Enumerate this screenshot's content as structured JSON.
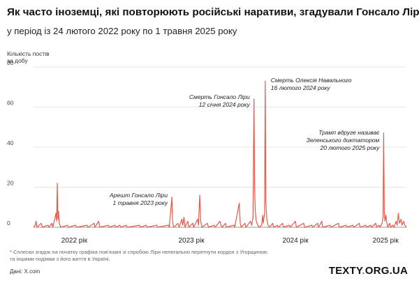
{
  "header": {
    "title": "Як часто іноземці, які повторюють російські наративи, згадували Гонсало Ліру",
    "subtitle": "у період із 24 лютого 2022 року по 1 травня 2025 року"
  },
  "footer": {
    "footnote_line1": "* Сплески згадок на початку графіка пов’язані зі спробою Ліри нелегально перетнути кордон з Угорщиною",
    "footnote_line2": "та іншими подіями з його життя в Україні.",
    "source": "Дані: X.com",
    "brand_left": "TEXTY",
    "brand_dot": ".",
    "brand_right": "ORG.UA"
  },
  "chart_data": {
    "type": "line",
    "ylabel_line1": "Кількість постів",
    "ylabel_line2": "за добу",
    "ylim": [
      0,
      80
    ],
    "yticks": [
      0,
      20,
      40,
      60,
      80
    ],
    "grid": "horizontal",
    "line_color": "#e5584a",
    "x_range": [
      "2022-02-24",
      "2025-05-01"
    ],
    "x_labels": [
      {
        "label": "2022 рік",
        "date": "2022-07-01"
      },
      {
        "label": "2023 рік",
        "date": "2023-07-01"
      },
      {
        "label": "2024 рік",
        "date": "2024-05-20"
      },
      {
        "label": "2025 рік",
        "date": "2025-02-25"
      }
    ],
    "points": [
      {
        "date": "2022-02-24",
        "value": 0
      },
      {
        "date": "2022-03-01",
        "value": 1
      },
      {
        "date": "2022-03-04",
        "value": 3
      },
      {
        "date": "2022-03-07",
        "value": 0
      },
      {
        "date": "2022-03-20",
        "value": 2
      },
      {
        "date": "2022-03-24",
        "value": 0
      },
      {
        "date": "2022-04-10",
        "value": 1
      },
      {
        "date": "2022-04-13",
        "value": 0
      },
      {
        "date": "2022-04-22",
        "value": 2
      },
      {
        "date": "2022-04-25",
        "value": 0
      },
      {
        "date": "2022-05-05",
        "value": 7
      },
      {
        "date": "2022-05-07",
        "value": 3
      },
      {
        "date": "2022-05-09",
        "value": 22
      },
      {
        "date": "2022-05-11",
        "value": 4
      },
      {
        "date": "2022-05-13",
        "value": 8
      },
      {
        "date": "2022-05-15",
        "value": 2
      },
      {
        "date": "2022-05-20",
        "value": 0
      },
      {
        "date": "2022-06-10",
        "value": 1
      },
      {
        "date": "2022-06-13",
        "value": 0
      },
      {
        "date": "2022-07-05",
        "value": 1
      },
      {
        "date": "2022-07-08",
        "value": 0
      },
      {
        "date": "2022-08-10",
        "value": 1
      },
      {
        "date": "2022-08-13",
        "value": 0
      },
      {
        "date": "2022-09-01",
        "value": 2
      },
      {
        "date": "2022-09-03",
        "value": 0
      },
      {
        "date": "2022-09-15",
        "value": 3
      },
      {
        "date": "2022-09-18",
        "value": 0
      },
      {
        "date": "2022-10-15",
        "value": 1
      },
      {
        "date": "2022-10-18",
        "value": 0
      },
      {
        "date": "2022-11-05",
        "value": 1
      },
      {
        "date": "2022-11-08",
        "value": 0
      },
      {
        "date": "2022-11-20",
        "value": 1
      },
      {
        "date": "2022-11-23",
        "value": 0
      },
      {
        "date": "2022-12-10",
        "value": 1
      },
      {
        "date": "2022-12-13",
        "value": 0
      },
      {
        "date": "2023-01-20",
        "value": 1
      },
      {
        "date": "2023-01-23",
        "value": 0
      },
      {
        "date": "2023-02-10",
        "value": 1
      },
      {
        "date": "2023-02-13",
        "value": 0
      },
      {
        "date": "2023-03-15",
        "value": 1
      },
      {
        "date": "2023-03-18",
        "value": 0
      },
      {
        "date": "2023-04-20",
        "value": 1
      },
      {
        "date": "2023-04-23",
        "value": 0
      },
      {
        "date": "2023-05-01",
        "value": 15
      },
      {
        "date": "2023-05-03",
        "value": 4
      },
      {
        "date": "2023-05-05",
        "value": 1
      },
      {
        "date": "2023-05-08",
        "value": 0
      },
      {
        "date": "2023-05-20",
        "value": 2
      },
      {
        "date": "2023-05-24",
        "value": 0
      },
      {
        "date": "2023-06-01",
        "value": 4
      },
      {
        "date": "2023-06-04",
        "value": 1
      },
      {
        "date": "2023-06-08",
        "value": 5
      },
      {
        "date": "2023-06-11",
        "value": 0
      },
      {
        "date": "2023-06-20",
        "value": 3
      },
      {
        "date": "2023-06-23",
        "value": 0
      },
      {
        "date": "2023-07-05",
        "value": 2
      },
      {
        "date": "2023-07-08",
        "value": 0
      },
      {
        "date": "2023-07-20",
        "value": 4
      },
      {
        "date": "2023-07-23",
        "value": 1
      },
      {
        "date": "2023-07-27",
        "value": 16
      },
      {
        "date": "2023-07-30",
        "value": 3
      },
      {
        "date": "2023-08-03",
        "value": 0
      },
      {
        "date": "2023-08-20",
        "value": 2
      },
      {
        "date": "2023-08-23",
        "value": 0
      },
      {
        "date": "2023-09-10",
        "value": 1
      },
      {
        "date": "2023-09-13",
        "value": 0
      },
      {
        "date": "2023-09-28",
        "value": 3
      },
      {
        "date": "2023-10-01",
        "value": 1
      },
      {
        "date": "2023-10-05",
        "value": 0
      },
      {
        "date": "2023-10-15",
        "value": 2
      },
      {
        "date": "2023-10-18",
        "value": 0
      },
      {
        "date": "2023-11-10",
        "value": 1
      },
      {
        "date": "2023-11-13",
        "value": 0
      },
      {
        "date": "2023-11-27",
        "value": 12
      },
      {
        "date": "2023-11-30",
        "value": 2
      },
      {
        "date": "2023-12-03",
        "value": 0
      },
      {
        "date": "2023-12-15",
        "value": 2
      },
      {
        "date": "2023-12-18",
        "value": 0
      },
      {
        "date": "2024-01-01",
        "value": 3
      },
      {
        "date": "2024-01-05",
        "value": 1
      },
      {
        "date": "2024-01-09",
        "value": 5
      },
      {
        "date": "2024-01-12",
        "value": 64
      },
      {
        "date": "2024-01-14",
        "value": 20
      },
      {
        "date": "2024-01-16",
        "value": 8
      },
      {
        "date": "2024-01-19",
        "value": 3
      },
      {
        "date": "2024-01-24",
        "value": 1
      },
      {
        "date": "2024-01-28",
        "value": 0
      },
      {
        "date": "2024-02-05",
        "value": 1
      },
      {
        "date": "2024-02-08",
        "value": 6
      },
      {
        "date": "2024-02-10",
        "value": 2
      },
      {
        "date": "2024-02-14",
        "value": 7
      },
      {
        "date": "2024-02-16",
        "value": 73
      },
      {
        "date": "2024-02-18",
        "value": 12
      },
      {
        "date": "2024-02-21",
        "value": 4
      },
      {
        "date": "2024-02-25",
        "value": 1
      },
      {
        "date": "2024-03-01",
        "value": 0
      },
      {
        "date": "2024-03-10",
        "value": 2
      },
      {
        "date": "2024-03-13",
        "value": 0
      },
      {
        "date": "2024-03-25",
        "value": 1
      },
      {
        "date": "2024-03-28",
        "value": 0
      },
      {
        "date": "2024-04-10",
        "value": 2
      },
      {
        "date": "2024-04-13",
        "value": 0
      },
      {
        "date": "2024-05-01",
        "value": 1
      },
      {
        "date": "2024-05-04",
        "value": 0
      },
      {
        "date": "2024-05-20",
        "value": 3
      },
      {
        "date": "2024-05-23",
        "value": 0
      },
      {
        "date": "2024-06-15",
        "value": 2
      },
      {
        "date": "2024-06-18",
        "value": 0
      },
      {
        "date": "2024-07-10",
        "value": 1
      },
      {
        "date": "2024-07-13",
        "value": 0
      },
      {
        "date": "2024-07-28",
        "value": 2
      },
      {
        "date": "2024-07-31",
        "value": 0
      },
      {
        "date": "2024-08-10",
        "value": 3
      },
      {
        "date": "2024-08-13",
        "value": 0
      },
      {
        "date": "2024-09-05",
        "value": 1
      },
      {
        "date": "2024-09-08",
        "value": 0
      },
      {
        "date": "2024-10-01",
        "value": 2
      },
      {
        "date": "2024-10-04",
        "value": 0
      },
      {
        "date": "2024-10-25",
        "value": 1
      },
      {
        "date": "2024-10-28",
        "value": 0
      },
      {
        "date": "2024-11-15",
        "value": 1
      },
      {
        "date": "2024-11-18",
        "value": 0
      },
      {
        "date": "2024-12-05",
        "value": 2
      },
      {
        "date": "2024-12-08",
        "value": 0
      },
      {
        "date": "2024-12-25",
        "value": 1
      },
      {
        "date": "2024-12-28",
        "value": 0
      },
      {
        "date": "2025-01-10",
        "value": 1
      },
      {
        "date": "2025-01-13",
        "value": 0
      },
      {
        "date": "2025-01-25",
        "value": 2
      },
      {
        "date": "2025-01-28",
        "value": 0
      },
      {
        "date": "2025-02-05",
        "value": 1
      },
      {
        "date": "2025-02-08",
        "value": 0
      },
      {
        "date": "2025-02-14",
        "value": 2
      },
      {
        "date": "2025-02-17",
        "value": 5
      },
      {
        "date": "2025-02-19",
        "value": 47
      },
      {
        "date": "2025-02-21",
        "value": 8
      },
      {
        "date": "2025-02-23",
        "value": 3
      },
      {
        "date": "2025-02-26",
        "value": 6
      },
      {
        "date": "2025-03-01",
        "value": 2
      },
      {
        "date": "2025-03-04",
        "value": 0
      },
      {
        "date": "2025-03-10",
        "value": 2
      },
      {
        "date": "2025-03-13",
        "value": 0
      },
      {
        "date": "2025-03-20",
        "value": 1
      },
      {
        "date": "2025-03-23",
        "value": 0
      },
      {
        "date": "2025-03-30",
        "value": 3
      },
      {
        "date": "2025-04-02",
        "value": 1
      },
      {
        "date": "2025-04-06",
        "value": 7
      },
      {
        "date": "2025-04-09",
        "value": 2
      },
      {
        "date": "2025-04-14",
        "value": 4
      },
      {
        "date": "2025-04-17",
        "value": 1
      },
      {
        "date": "2025-04-22",
        "value": 3
      },
      {
        "date": "2025-04-26",
        "value": 1
      },
      {
        "date": "2025-05-01",
        "value": 0
      }
    ],
    "annotations": [
      {
        "id": "arrest",
        "lines": [
          "Арешт Гонсало Ліри",
          "1 травня 2023 року"
        ],
        "date": "2023-05-01",
        "value": 15,
        "anchor": "end"
      },
      {
        "id": "death-lira",
        "lines": [
          "Смерть Гонсало Ліри",
          "12 січня 2024 року"
        ],
        "date": "2024-01-12",
        "value": 64,
        "anchor": "end"
      },
      {
        "id": "death-navalny",
        "lines": [
          "Смерть Олексія Навального",
          "16 лютого 2024 року"
        ],
        "date": "2024-02-16",
        "value": 73,
        "anchor": "start"
      },
      {
        "id": "trump",
        "lines": [
          "Трамп вдруге називає",
          "Зеленського диктатором",
          "20 лютого 2025 року"
        ],
        "date": "2025-02-19",
        "value": 47,
        "anchor": "end"
      }
    ]
  }
}
